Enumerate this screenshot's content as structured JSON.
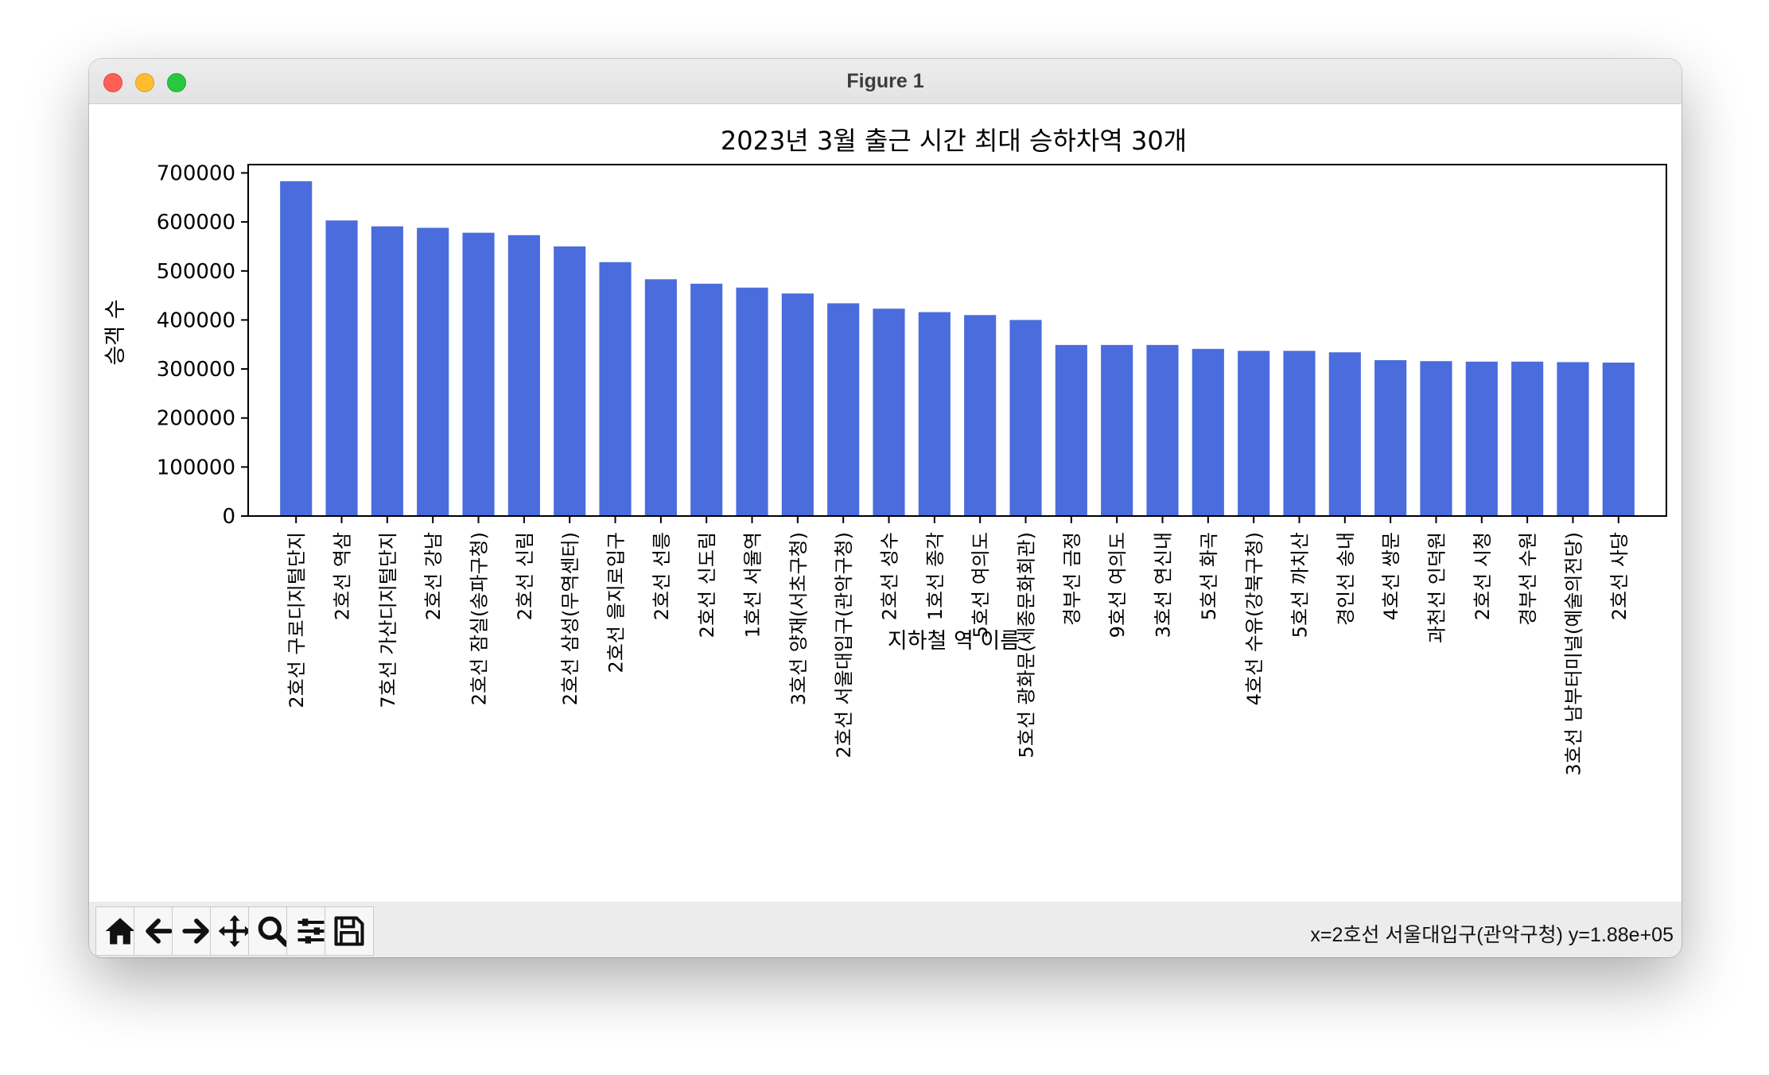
{
  "window": {
    "title": "Figure 1"
  },
  "toolbar": {
    "buttons": [
      {
        "name": "home-button",
        "icon": "home-icon"
      },
      {
        "name": "back-button",
        "icon": "arrow-left-icon"
      },
      {
        "name": "forward-button",
        "icon": "arrow-right-icon"
      },
      {
        "name": "pan-button",
        "icon": "move-icon"
      },
      {
        "name": "zoom-button",
        "icon": "magnifier-icon"
      },
      {
        "name": "configure-subplots-button",
        "icon": "sliders-icon"
      },
      {
        "name": "save-button",
        "icon": "floppy-disk-icon"
      }
    ],
    "coords_readout": "x=2호선 서울대입구(관악구청) y=1.88e+05"
  },
  "chart_data": {
    "type": "bar",
    "title": "2023년 3월 출근 시간 최대 승하차역 30개",
    "xlabel": "지하철 역 이름",
    "ylabel": "승객 수",
    "ylim": [
      0,
      717000
    ],
    "yticks": [
      0,
      100000,
      200000,
      300000,
      400000,
      500000,
      600000,
      700000
    ],
    "grid": false,
    "bar_color": "#4a6cdc",
    "categories": [
      "2호선 구로디지털단지",
      "2호선 역삼",
      "7호선 가산디지털단지",
      "2호선 강남",
      "2호선 잠실(송파구청)",
      "2호선 신림",
      "2호선 삼성(무역센터)",
      "2호선 을지로입구",
      "2호선 선릉",
      "2호선 신도림",
      "1호선 서울역",
      "3호선 양재(서초구청)",
      "2호선 서울대입구(관악구청)",
      "2호선 성수",
      "1호선 종각",
      "5호선 여의도",
      "5호선 광화문(세종문화회관)",
      "경부선 금정",
      "9호선 여의도",
      "3호선 연신내",
      "5호선 화곡",
      "4호선 수유(강북구청)",
      "5호선 까치산",
      "경인선 송내",
      "4호선 쌍문",
      "과천선 인덕원",
      "2호선 시청",
      "경부선 수원",
      "3호선 남부터미널(예술의전당)",
      "2호선 사당"
    ],
    "values": [
      683000,
      603000,
      591000,
      588000,
      578000,
      573000,
      550000,
      518000,
      483000,
      474000,
      466000,
      454000,
      434000,
      423000,
      416000,
      410000,
      400000,
      349000,
      349000,
      349000,
      341000,
      337000,
      337000,
      334000,
      318000,
      316000,
      315000,
      315000,
      314000,
      313000
    ]
  }
}
